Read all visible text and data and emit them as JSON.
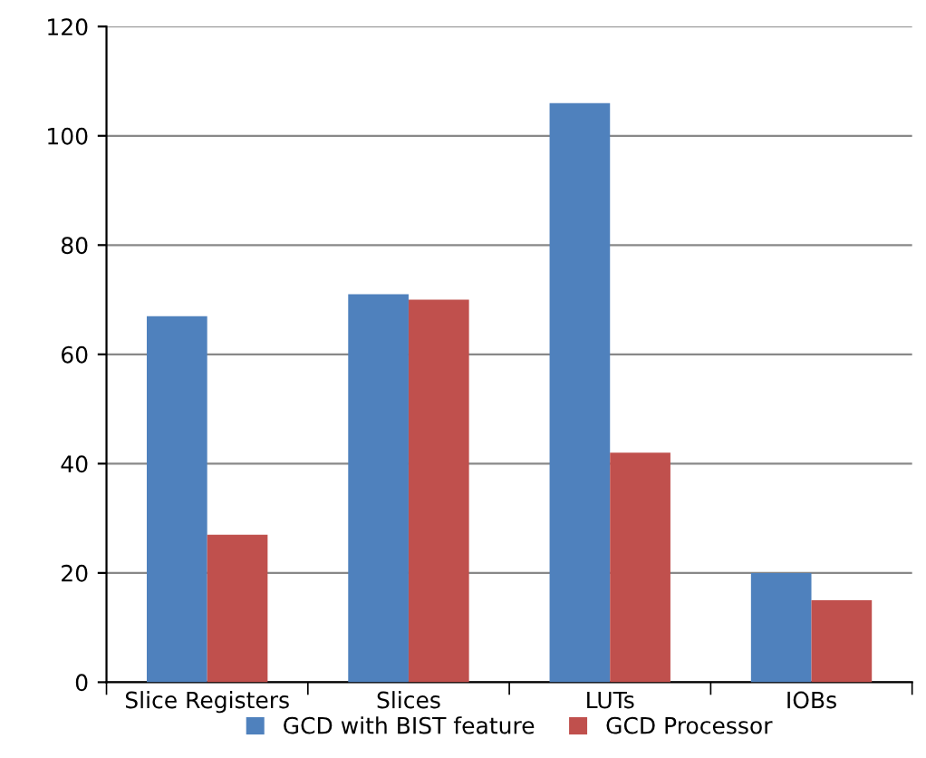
{
  "chart_data": {
    "type": "bar",
    "categories": [
      "Slice Registers",
      "Slices",
      "LUTs",
      "IOBs"
    ],
    "series": [
      {
        "name": "GCD with BIST feature",
        "color": "#4f81bd",
        "values": [
          67,
          71,
          106,
          20
        ]
      },
      {
        "name": "GCD Processor",
        "color": "#c0504d",
        "values": [
          27,
          70,
          42,
          15
        ]
      }
    ],
    "ylim": [
      0,
      120
    ],
    "yticks": [
      0,
      20,
      40,
      60,
      80,
      100,
      120
    ],
    "grid": "y",
    "legend": "bottom"
  }
}
